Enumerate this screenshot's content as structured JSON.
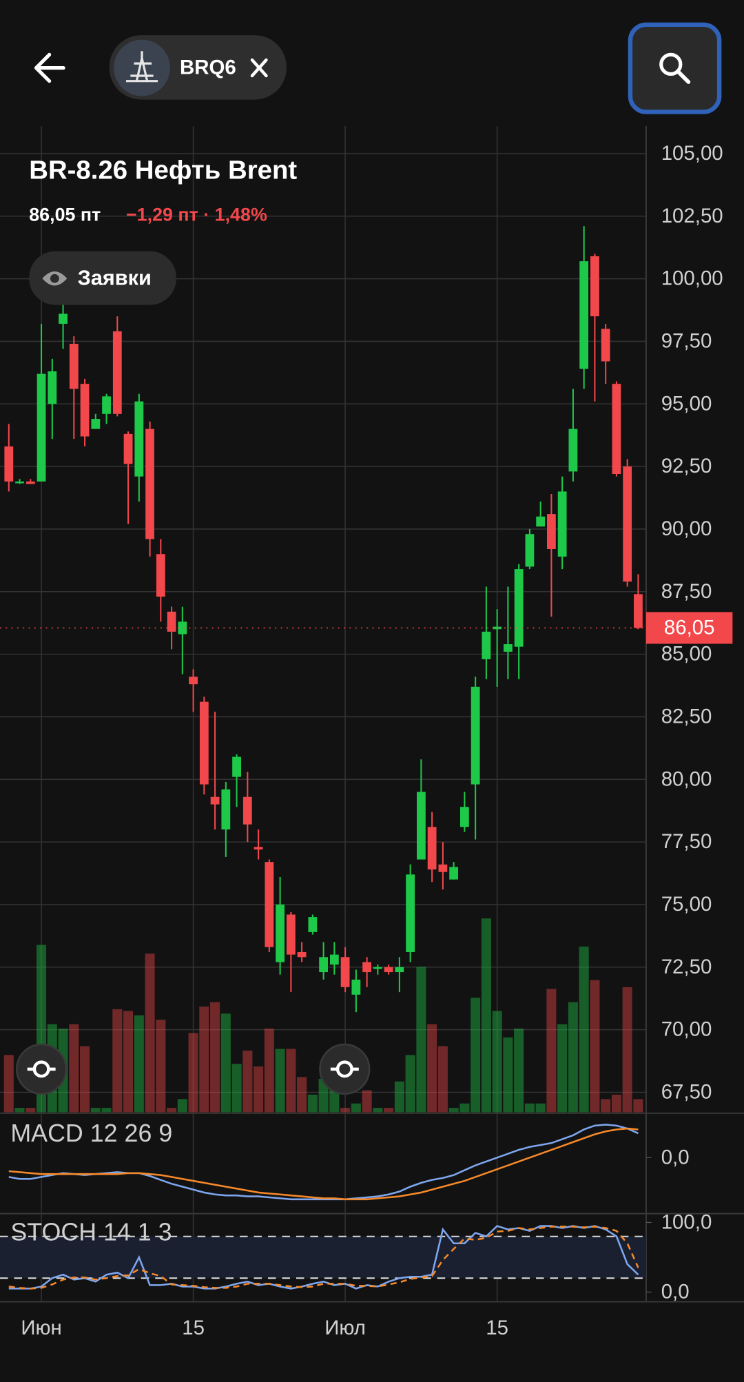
{
  "header": {
    "ticker": "BRQ6"
  },
  "chart_data": [
    {
      "type": "candlestick",
      "title": "BR-8.26 Нефть Brent",
      "price": "86,05 пт",
      "change": "−1,29 пт · 1,48%",
      "orders_button": "Заявки",
      "up_color": "#1ec94a",
      "down_color": "#f2474b",
      "categories": [
        null,
        null,
        null,
        "Июн",
        null,
        null,
        null,
        null,
        null,
        null,
        null,
        null,
        null,
        null,
        null,
        null,
        null,
        "15",
        null,
        null,
        null,
        null,
        null,
        null,
        null,
        null,
        null,
        null,
        null,
        null,
        null,
        "Июл",
        null,
        null,
        null,
        null,
        null,
        null,
        null,
        null,
        null,
        null,
        null,
        null,
        null,
        "15",
        null,
        null,
        null,
        null,
        null,
        null,
        null,
        null,
        null,
        null,
        null,
        null,
        null
      ],
      "open": [
        93.3,
        91.9,
        91.9,
        91.9,
        95.0,
        98.2,
        97.4,
        95.8,
        94.0,
        94.6,
        97.9,
        93.8,
        92.1,
        94.0,
        89.0,
        86.7,
        85.8,
        84.1,
        83.1,
        79.3,
        78.0,
        80.1,
        79.3,
        77.3,
        76.7,
        72.7,
        74.6,
        73.1,
        73.9,
        72.3,
        72.6,
        72.9,
        71.4,
        72.7,
        72.5,
        72.5,
        72.3,
        73.1,
        76.8,
        78.1,
        76.6,
        76.0,
        78.1,
        79.8,
        84.8,
        86.0,
        85.1,
        85.3,
        88.5,
        90.1,
        90.6,
        88.9,
        92.3,
        96.4,
        100.9,
        98.0,
        95.8,
        92.5,
        87.4
      ],
      "high": [
        94.2,
        92.0,
        92.0,
        98.2,
        96.8,
        99.2,
        97.7,
        96.0,
        94.6,
        95.4,
        98.5,
        93.9,
        95.4,
        94.3,
        89.6,
        86.9,
        86.9,
        84.4,
        83.3,
        82.7,
        79.9,
        81.0,
        80.3,
        78.0,
        76.8,
        76.1,
        74.7,
        73.5,
        74.6,
        73.5,
        73.5,
        73.3,
        72.4,
        72.9,
        72.6,
        72.6,
        72.9,
        76.6,
        80.8,
        78.7,
        77.5,
        76.7,
        79.5,
        84.1,
        87.7,
        86.8,
        87.7,
        88.6,
        90.0,
        91.1,
        91.4,
        92.1,
        95.6,
        102.1,
        101.0,
        98.2,
        95.9,
        92.8,
        88.2
      ],
      "low": [
        91.5,
        91.8,
        91.8,
        91.9,
        93.6,
        97.2,
        93.6,
        93.3,
        94.0,
        94.2,
        94.5,
        90.2,
        91.1,
        88.9,
        86.3,
        85.2,
        84.2,
        82.7,
        79.4,
        78.0,
        76.9,
        78.9,
        77.5,
        76.8,
        73.1,
        72.2,
        71.5,
        72.7,
        73.8,
        72.0,
        72.2,
        71.5,
        70.7,
        71.7,
        72.2,
        72.2,
        71.5,
        72.7,
        76.8,
        75.9,
        75.6,
        76.0,
        77.9,
        77.6,
        84.0,
        83.7,
        84.0,
        84.0,
        88.4,
        90.1,
        86.5,
        88.4,
        91.9,
        95.6,
        95.1,
        95.8,
        92.1,
        87.7,
        86.0
      ],
      "close": [
        91.9,
        91.9,
        91.8,
        96.2,
        96.3,
        98.6,
        95.6,
        93.7,
        94.4,
        95.3,
        94.6,
        92.6,
        95.1,
        89.6,
        87.3,
        85.9,
        86.3,
        83.8,
        79.8,
        79.0,
        79.6,
        80.9,
        78.2,
        77.2,
        73.3,
        75.0,
        73.0,
        72.9,
        74.5,
        72.9,
        73.0,
        71.7,
        72.0,
        72.3,
        72.5,
        72.3,
        72.5,
        76.2,
        79.5,
        76.4,
        76.3,
        76.5,
        78.9,
        83.7,
        85.9,
        86.1,
        85.4,
        88.4,
        89.8,
        90.5,
        89.2,
        91.5,
        94.0,
        100.7,
        98.5,
        96.7,
        92.2,
        87.9,
        86.05
      ],
      "volume": [
        65,
        5,
        5,
        190,
        100,
        95,
        100,
        75,
        5,
        5,
        117,
        115,
        110,
        180,
        105,
        5,
        15,
        90,
        120,
        125,
        112,
        55,
        70,
        52,
        95,
        72,
        72,
        40,
        20,
        38,
        30,
        5,
        10,
        25,
        5,
        5,
        35,
        65,
        165,
        100,
        75,
        5,
        10,
        130,
        220,
        115,
        85,
        95,
        10,
        10,
        140,
        100,
        125,
        188,
        150,
        15,
        20,
        142,
        15
      ],
      "last_price": {
        "value": 86.05,
        "label": "86,05"
      },
      "ylim": [
        66.7,
        106.1
      ],
      "yticks": [
        {
          "value": 105,
          "label": "105,00"
        },
        {
          "value": 102.5,
          "label": "102,50"
        },
        {
          "value": 100,
          "label": "100,00"
        },
        {
          "value": 97.5,
          "label": "97,50"
        },
        {
          "value": 95,
          "label": "95,00"
        },
        {
          "value": 92.5,
          "label": "92,50"
        },
        {
          "value": 90,
          "label": "90,00"
        },
        {
          "value": 87.5,
          "label": "87,50"
        },
        {
          "value": 85,
          "label": "85,00"
        },
        {
          "value": 82.5,
          "label": "82,50"
        },
        {
          "value": 80,
          "label": "80,00"
        },
        {
          "value": 77.5,
          "label": "77,50"
        },
        {
          "value": 75,
          "label": "75,00"
        },
        {
          "value": 72.5,
          "label": "72,50"
        },
        {
          "value": 70,
          "label": "70,00"
        },
        {
          "value": 67.5,
          "label": "67,50"
        }
      ],
      "grid": true
    },
    {
      "type": "line",
      "title": "MACD 12 26 9",
      "ylim": [
        -5.6,
        4.4
      ],
      "yticks": [
        {
          "value": 0,
          "label": "0,0"
        }
      ],
      "series": [
        {
          "color": "#7ea6ee",
          "values": [
            -2.0,
            -2.2,
            -2.2,
            -2.0,
            -1.8,
            -1.6,
            -1.7,
            -1.8,
            -1.7,
            -1.6,
            -1.5,
            -1.6,
            -1.6,
            -1.9,
            -2.3,
            -2.7,
            -3.0,
            -3.3,
            -3.6,
            -3.8,
            -3.9,
            -3.9,
            -4.0,
            -4.0,
            -4.1,
            -4.2,
            -4.3,
            -4.3,
            -4.3,
            -4.3,
            -4.3,
            -4.3,
            -4.2,
            -4.1,
            -4.0,
            -3.8,
            -3.5,
            -3.0,
            -2.6,
            -2.3,
            -2.1,
            -1.8,
            -1.3,
            -0.8,
            -0.4,
            0.0,
            0.4,
            0.8,
            1.1,
            1.3,
            1.5,
            1.9,
            2.3,
            2.9,
            3.3,
            3.4,
            3.3,
            3.0,
            2.5
          ]
        },
        {
          "color": "#f5892a",
          "values": [
            -1.4,
            -1.5,
            -1.6,
            -1.7,
            -1.7,
            -1.7,
            -1.7,
            -1.7,
            -1.7,
            -1.7,
            -1.7,
            -1.6,
            -1.6,
            -1.7,
            -1.8,
            -2.0,
            -2.2,
            -2.4,
            -2.6,
            -2.8,
            -3.0,
            -3.2,
            -3.4,
            -3.6,
            -3.7,
            -3.8,
            -3.9,
            -4.0,
            -4.1,
            -4.2,
            -4.2,
            -4.3,
            -4.3,
            -4.3,
            -4.2,
            -4.1,
            -4.0,
            -3.8,
            -3.6,
            -3.3,
            -3.0,
            -2.7,
            -2.4,
            -2.0,
            -1.6,
            -1.2,
            -0.8,
            -0.4,
            0.0,
            0.4,
            0.8,
            1.2,
            1.6,
            2.0,
            2.4,
            2.7,
            2.9,
            3.0,
            2.9
          ]
        }
      ]
    },
    {
      "type": "line",
      "title": "STOCH 14 1 3",
      "ylim": [
        -12.7,
        111.4
      ],
      "yticks": [
        {
          "value": 100,
          "label": "100,0"
        },
        {
          "value": 0,
          "label": "0,0"
        }
      ],
      "levels": [
        80,
        20
      ],
      "series": [
        {
          "color": "#7ea6ee",
          "values": [
            5,
            5,
            5,
            8,
            20,
            25,
            18,
            20,
            15,
            25,
            28,
            20,
            50,
            10,
            10,
            12,
            8,
            8,
            5,
            5,
            8,
            12,
            15,
            10,
            12,
            8,
            5,
            8,
            12,
            15,
            10,
            12,
            5,
            10,
            8,
            15,
            20,
            22,
            22,
            25,
            90,
            70,
            70,
            85,
            80,
            95,
            90,
            92,
            88,
            95,
            95,
            92,
            95,
            92,
            95,
            90,
            80,
            40,
            25
          ]
        },
        {
          "color": "#f5892a",
          "dashed": true,
          "values": [
            8,
            6,
            5,
            6,
            11,
            18,
            21,
            21,
            18,
            20,
            23,
            24,
            33,
            27,
            23,
            11,
            10,
            9,
            7,
            6,
            6,
            8,
            12,
            12,
            12,
            10,
            8,
            7,
            8,
            12,
            12,
            12,
            9,
            9,
            8,
            11,
            14,
            19,
            21,
            23,
            46,
            62,
            77,
            75,
            78,
            87,
            88,
            92,
            90,
            92,
            94,
            94,
            94,
            93,
            94,
            92,
            88,
            70,
            35
          ]
        }
      ]
    }
  ]
}
